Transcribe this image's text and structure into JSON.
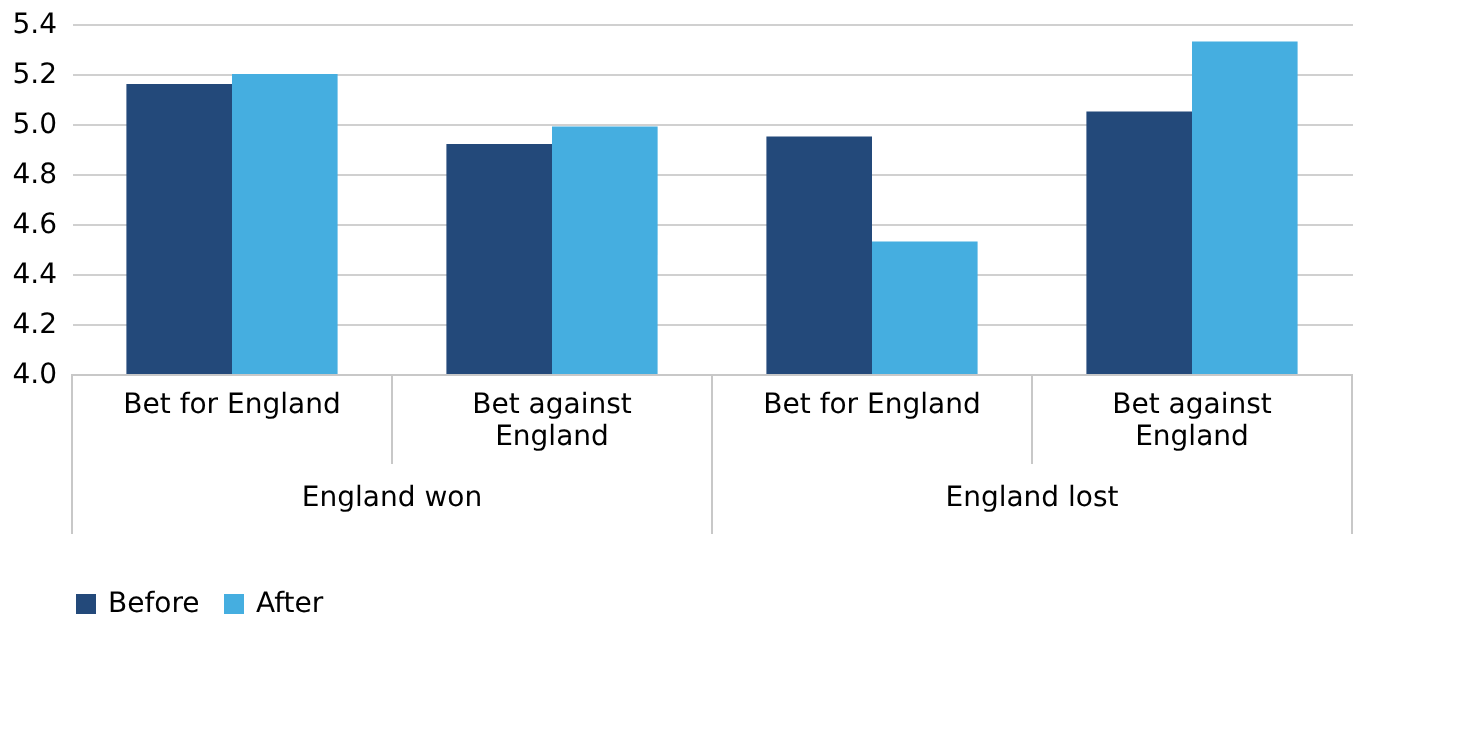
{
  "chart_data": {
    "type": "bar",
    "categories": [
      "Bet for England",
      "Bet against England",
      "Bet for England",
      "Bet against England"
    ],
    "series": [
      {
        "name": "Before",
        "color": "#23497a",
        "values": [
          5.16,
          4.92,
          4.95,
          5.05
        ]
      },
      {
        "name": "After",
        "color": "#45aee0",
        "values": [
          5.2,
          4.99,
          4.53,
          5.33
        ]
      }
    ],
    "annotations": [
      "England won",
      "England lost"
    ],
    "ylim": [
      4.0,
      5.4
    ],
    "yticks": [
      {
        "value": 4,
        "label": "4.0"
      },
      4.2,
      4.4,
      4.6,
      4.8,
      {
        "value": 5,
        "label": "5.0"
      },
      5.2,
      5.4
    ],
    "grid": "y",
    "legend": "bottom"
  }
}
